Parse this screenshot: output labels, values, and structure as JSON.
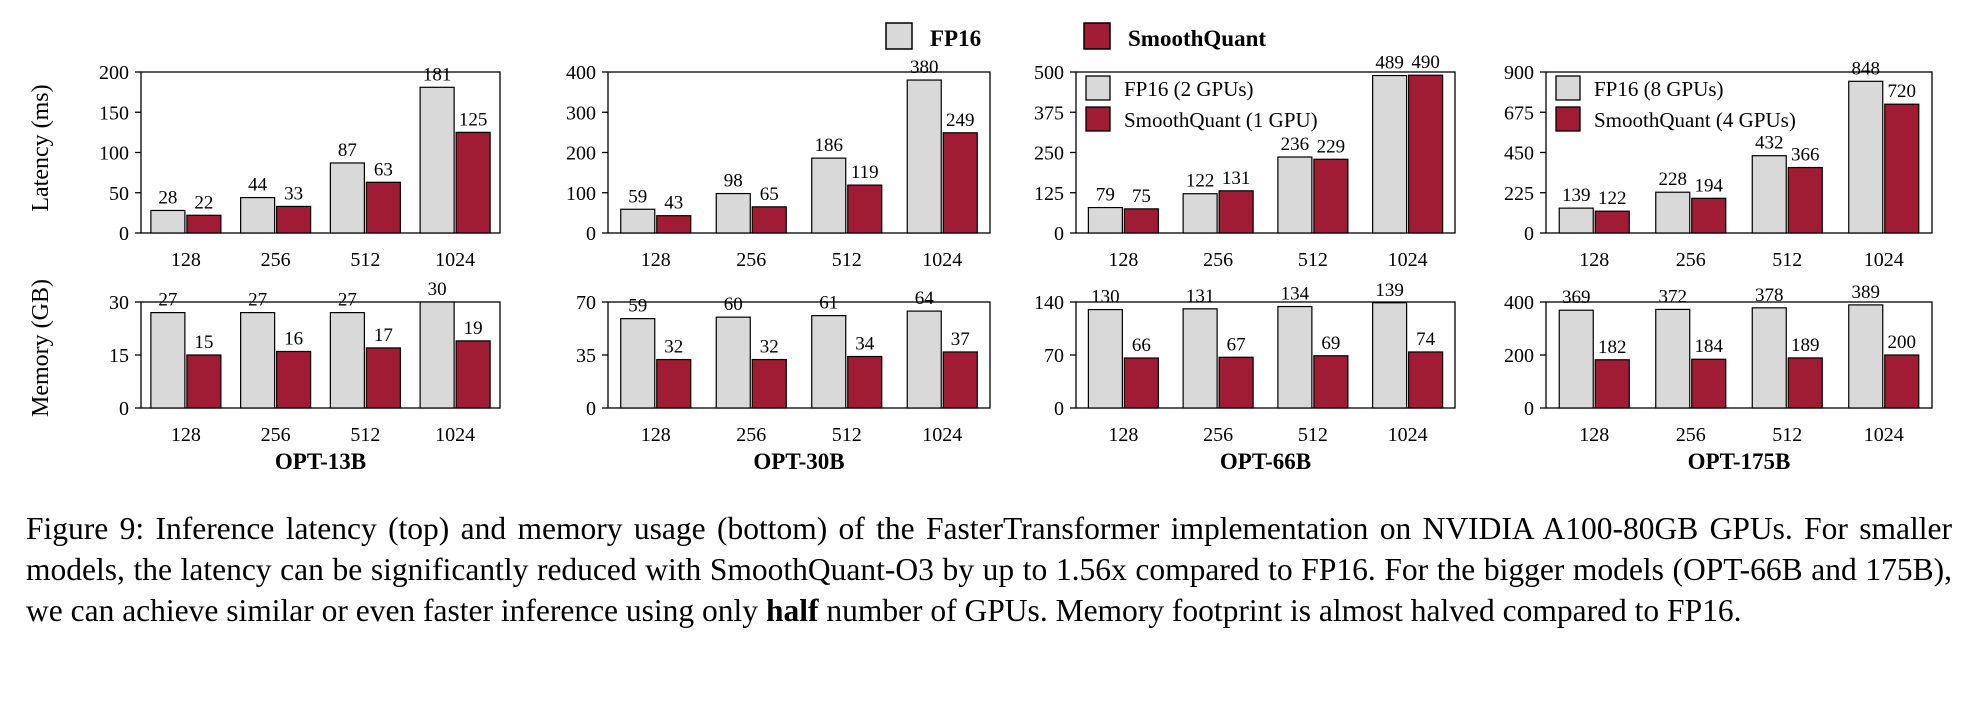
{
  "legend": {
    "fp16": "FP16",
    "smoothquant": "SmoothQuant",
    "colors": {
      "fp16": "#d9d9d9",
      "smoothquant": "#a01c34"
    }
  },
  "ylabels": {
    "latency": "Latency (ms)",
    "memory": "Memory (GB)"
  },
  "caption": {
    "part1": "Figure 9: Inference latency (top) and memory usage (bottom) of the FasterTransformer implementation on NVIDIA A100-80GB GPUs. For smaller models, the latency can be significantly reduced with SmoothQuant-O3 by up to 1.56x compared to FP16. For the bigger models (OPT-66B and 175B), we can achieve similar or even faster inference using only ",
    "bold": "half",
    "part2": " number of GPUs. Memory footprint is almost halved compared to FP16."
  },
  "chart_data": [
    {
      "type": "bar",
      "model": "OPT-13B",
      "metric": "latency",
      "categories": [
        "128",
        "256",
        "512",
        "1024"
      ],
      "series": [
        {
          "values": [
            28,
            44,
            87,
            181
          ]
        },
        {
          "values": [
            22,
            33,
            63,
            125
          ]
        }
      ],
      "ylim": [
        0,
        200
      ],
      "yticks": [
        0,
        50,
        100,
        150,
        200
      ],
      "ylabel": "Latency (ms)"
    },
    {
      "type": "bar",
      "model": "OPT-30B",
      "metric": "latency",
      "categories": [
        "128",
        "256",
        "512",
        "1024"
      ],
      "series": [
        {
          "values": [
            59,
            98,
            186,
            380
          ]
        },
        {
          "values": [
            43,
            65,
            119,
            249
          ]
        }
      ],
      "ylim": [
        0,
        400
      ],
      "yticks": [
        0,
        100,
        200,
        300,
        400
      ]
    },
    {
      "type": "bar",
      "model": "OPT-66B",
      "metric": "latency",
      "categories": [
        "128",
        "256",
        "512",
        "1024"
      ],
      "series": [
        {
          "name": "FP16 (2 GPUs)",
          "values": [
            79,
            122,
            236,
            489
          ]
        },
        {
          "name": "SmoothQuant (1 GPU)",
          "values": [
            75,
            131,
            229,
            490
          ]
        }
      ],
      "ylim": [
        0,
        500
      ],
      "yticks": [
        0,
        125,
        250,
        375,
        500
      ]
    },
    {
      "type": "bar",
      "model": "OPT-175B",
      "metric": "latency",
      "categories": [
        "128",
        "256",
        "512",
        "1024"
      ],
      "series": [
        {
          "name": "FP16 (8 GPUs)",
          "values": [
            139,
            228,
            432,
            848
          ]
        },
        {
          "name": "SmoothQuant (4 GPUs)",
          "values": [
            122,
            194,
            366,
            720
          ]
        }
      ],
      "ylim": [
        0,
        900
      ],
      "yticks": [
        0,
        225,
        450,
        675,
        900
      ]
    },
    {
      "type": "bar",
      "model": "OPT-13B",
      "metric": "memory",
      "categories": [
        "128",
        "256",
        "512",
        "1024"
      ],
      "series": [
        {
          "values": [
            27,
            27,
            27,
            30
          ]
        },
        {
          "values": [
            15,
            16,
            17,
            19
          ]
        }
      ],
      "ylim": [
        0,
        30
      ],
      "yticks": [
        0,
        15,
        30
      ],
      "ylabel": "Memory (GB)",
      "xlabel": "OPT-13B"
    },
    {
      "type": "bar",
      "model": "OPT-30B",
      "metric": "memory",
      "categories": [
        "128",
        "256",
        "512",
        "1024"
      ],
      "series": [
        {
          "values": [
            59,
            60,
            61,
            64
          ]
        },
        {
          "values": [
            32,
            32,
            34,
            37
          ]
        }
      ],
      "ylim": [
        0,
        70
      ],
      "yticks": [
        0,
        35,
        70
      ],
      "xlabel": "OPT-30B"
    },
    {
      "type": "bar",
      "model": "OPT-66B",
      "metric": "memory",
      "categories": [
        "128",
        "256",
        "512",
        "1024"
      ],
      "series": [
        {
          "values": [
            130,
            131,
            134,
            139
          ]
        },
        {
          "values": [
            66,
            67,
            69,
            74
          ]
        }
      ],
      "ylim": [
        0,
        140
      ],
      "yticks": [
        0,
        70,
        140
      ],
      "xlabel": "OPT-66B"
    },
    {
      "type": "bar",
      "model": "OPT-175B",
      "metric": "memory",
      "categories": [
        "128",
        "256",
        "512",
        "1024"
      ],
      "series": [
        {
          "values": [
            369,
            372,
            378,
            389
          ]
        },
        {
          "values": [
            182,
            184,
            189,
            200
          ]
        }
      ],
      "ylim": [
        0,
        400
      ],
      "yticks": [
        0,
        200,
        400
      ],
      "xlabel": "OPT-175B"
    }
  ]
}
